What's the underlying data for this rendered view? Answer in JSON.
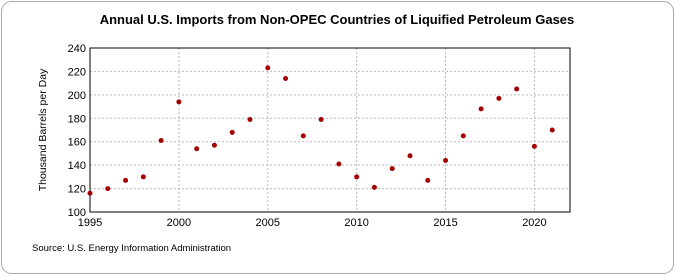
{
  "chart_data": {
    "type": "scatter",
    "title": "Annual U.S. Imports from Non-OPEC Countries of Liquified Petroleum Gases",
    "y_label": "Thousand Barrels per Day",
    "source": "Source: U.S. Energy Information Administration",
    "color": "#a50000",
    "x": [
      1995,
      1996,
      1997,
      1998,
      1999,
      2000,
      2001,
      2002,
      2003,
      2004,
      2005,
      2006,
      2007,
      2008,
      2009,
      2010,
      2011,
      2012,
      2013,
      2014,
      2015,
      2016,
      2017,
      2018,
      2019,
      2020,
      2021
    ],
    "values": [
      116,
      120,
      127,
      130,
      161,
      194,
      154,
      157,
      168,
      179,
      223,
      214,
      165,
      179,
      141,
      130,
      121,
      137,
      148,
      127,
      144,
      165,
      188,
      197,
      205,
      156,
      170
    ],
    "xlim": [
      1995,
      2022
    ],
    "xticks": [
      1995,
      2000,
      2005,
      2010,
      2015,
      2020
    ],
    "ylim": [
      100,
      240
    ],
    "yticks": [
      100,
      120,
      140,
      160,
      180,
      200,
      220,
      240
    ],
    "grid": true
  }
}
